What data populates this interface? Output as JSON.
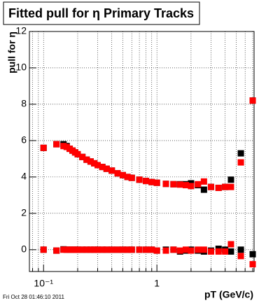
{
  "chart_data": {
    "type": "scatter",
    "title": "Fitted pull for η  Primary Tracks",
    "xlabel": "pT (GeV/c)",
    "ylabel": "pull for η",
    "log_x": true,
    "grid": true,
    "xlim": [
      0.075,
      7.2
    ],
    "ylim": [
      -1.2,
      12
    ],
    "xticks": [
      {
        "value": 0.1,
        "label": "10⁻¹"
      },
      1
    ],
    "xminor": [
      0.08,
      0.09,
      0.2,
      0.3,
      0.4,
      0.5,
      0.6,
      0.7,
      0.8,
      0.9,
      2,
      3,
      4,
      5,
      6,
      7
    ],
    "yticks": [
      0,
      2,
      4,
      6,
      8,
      10,
      12
    ],
    "x": [
      0.1,
      0.13,
      0.15,
      0.16,
      0.17,
      0.18,
      0.19,
      0.2,
      0.22,
      0.24,
      0.26,
      0.28,
      0.3,
      0.33,
      0.36,
      0.4,
      0.45,
      0.5,
      0.55,
      0.6,
      0.7,
      0.8,
      0.9,
      1.0,
      1.2,
      1.4,
      1.6,
      1.8,
      2.0,
      2.3,
      2.6,
      3.0,
      3.5,
      4.0,
      4.5,
      5.5,
      7.0
    ],
    "series": [
      {
        "color": "#000000",
        "values": [
          5.6,
          5.8,
          5.8,
          5.7,
          5.55,
          5.45,
          5.35,
          5.25,
          5.1,
          4.95,
          4.85,
          4.75,
          4.65,
          4.55,
          4.45,
          4.35,
          4.2,
          4.1,
          4.0,
          3.95,
          3.85,
          3.78,
          3.72,
          3.68,
          3.62,
          3.6,
          3.6,
          3.6,
          3.65,
          3.55,
          3.3,
          3.45,
          3.4,
          3.45,
          3.85,
          5.3,
          8.2
        ]
      },
      {
        "color": "#ff0000",
        "values": [
          5.6,
          5.8,
          5.7,
          5.65,
          5.55,
          5.45,
          5.35,
          5.25,
          5.1,
          4.95,
          4.85,
          4.75,
          4.65,
          4.55,
          4.45,
          4.35,
          4.2,
          4.1,
          4.0,
          3.95,
          3.85,
          3.78,
          3.72,
          3.68,
          3.62,
          3.6,
          3.58,
          3.55,
          3.5,
          3.6,
          3.75,
          3.45,
          3.4,
          3.45,
          3.45,
          4.8,
          8.2
        ]
      },
      {
        "color": "#000000",
        "values": [
          0.0,
          -0.05,
          0.02,
          0.0,
          0.0,
          0.0,
          0.0,
          0.0,
          0.0,
          0.0,
          0.0,
          0.0,
          0.0,
          0.0,
          0.0,
          0.0,
          0.0,
          0.0,
          0.0,
          0.0,
          0.0,
          0.0,
          0.0,
          -0.05,
          0.0,
          0.0,
          -0.1,
          -0.05,
          0.0,
          -0.05,
          -0.1,
          -0.05,
          0.05,
          0.0,
          -0.1,
          0.0,
          -0.25
        ]
      },
      {
        "color": "#ff0000",
        "values": [
          0.0,
          -0.05,
          0.0,
          0.0,
          0.0,
          0.0,
          0.0,
          0.0,
          0.0,
          0.0,
          0.0,
          0.0,
          0.0,
          0.0,
          0.0,
          0.0,
          0.0,
          0.0,
          0.0,
          0.0,
          0.0,
          0.0,
          0.0,
          -0.05,
          -0.05,
          0.0,
          -0.05,
          0.0,
          -0.05,
          0.0,
          0.0,
          -0.1,
          -0.1,
          -0.1,
          0.3,
          -0.35,
          -0.8
        ]
      }
    ],
    "footer": "Fri Oct 28 01:46:10 2011"
  }
}
